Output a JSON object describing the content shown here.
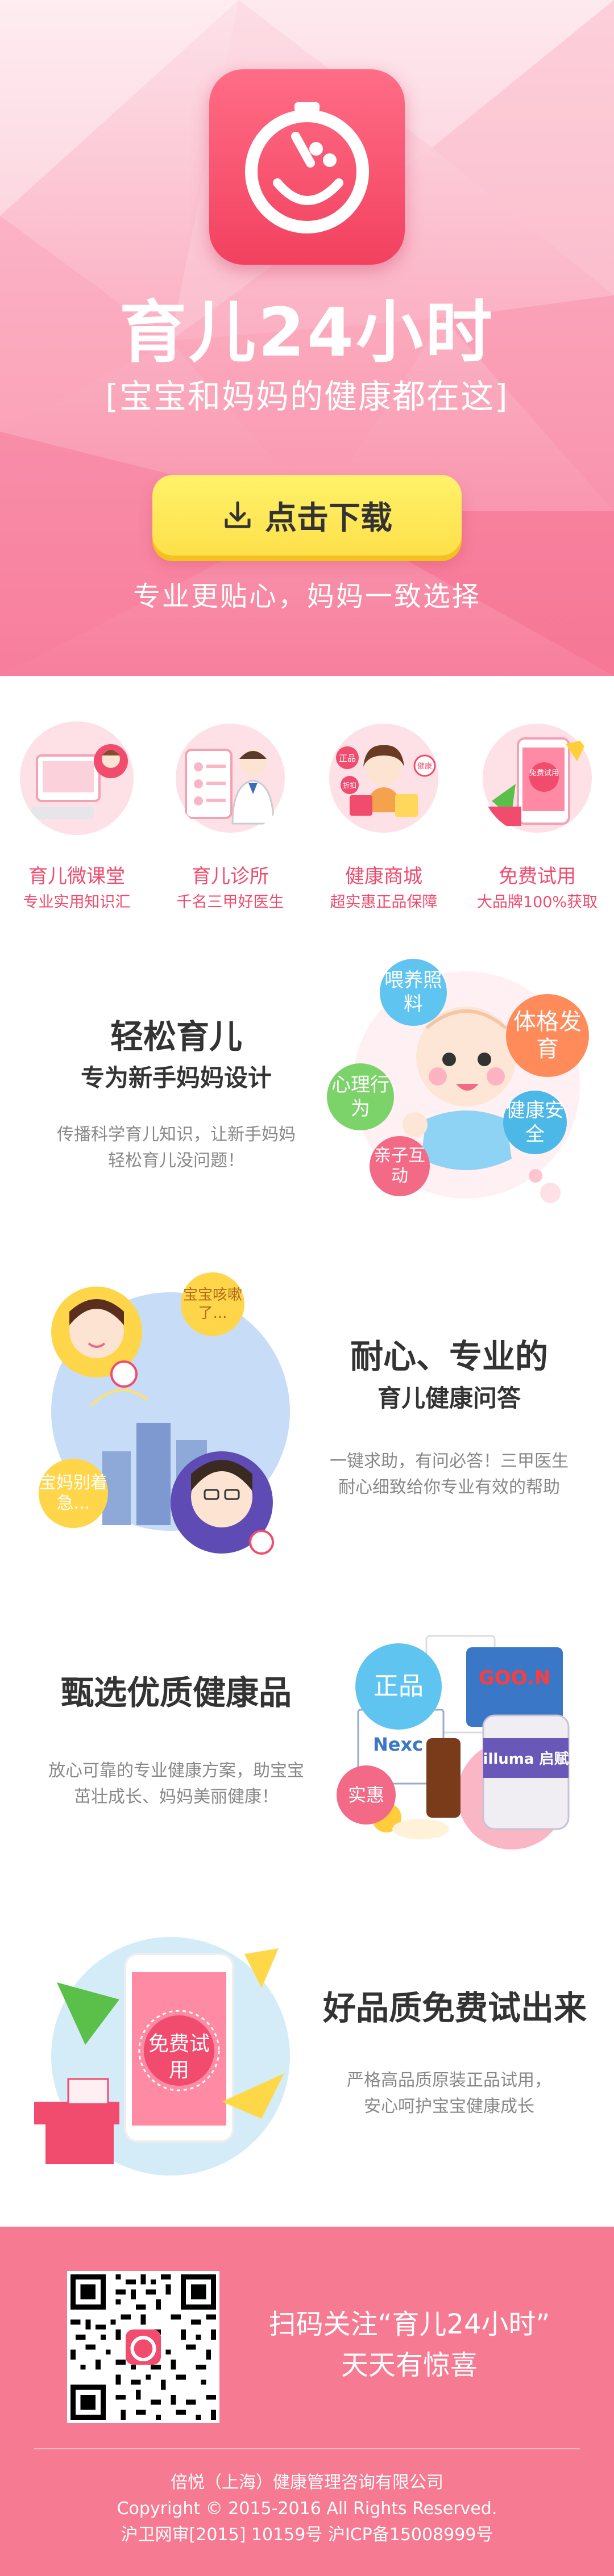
{
  "hero": {
    "title": "育儿24小时",
    "subtitle": "[宝宝和妈妈的健康都在这]",
    "download_label": "点击下载",
    "slogan": "专业更贴心，妈妈一致选择",
    "download_icon": "download-icon",
    "app_icon": "clock-smile-icon"
  },
  "features": [
    {
      "title": "育儿微课堂",
      "desc": "专业实用知识汇",
      "icon": "classroom-icon"
    },
    {
      "title": "育儿诊所",
      "desc": "千名三甲好医生",
      "icon": "doctor-icon"
    },
    {
      "title": "健康商城",
      "desc": "超实惠正品保障",
      "icon": "shopping-icon",
      "tags": [
        "正品",
        "健康",
        "折扣"
      ]
    },
    {
      "title": "免费试用",
      "desc": "大品牌100%获取",
      "icon": "free-trial-icon",
      "tag": "免费试用"
    }
  ],
  "section1": {
    "title": "轻松育儿",
    "subtitle": "专为新手妈妈设计",
    "desc_line1": "传播科学育儿知识，让新手妈妈",
    "desc_line2": "轻松育儿没问题！",
    "bubbles": [
      "喂养照料",
      "体格发育",
      "心理行为",
      "健康安全",
      "亲子互动"
    ]
  },
  "section2": {
    "title": "耐心、专业的",
    "subtitle": "育儿健康问答",
    "desc_line1": "一键求助，有问必答！三甲医生",
    "desc_line2": "耐心细致给你专业有效的帮助",
    "bubble_top": "宝宝咳嗽了...",
    "bubble_bottom": "宝妈别着急..."
  },
  "section3": {
    "title": "甄选优质健康品",
    "desc_line1": "放心可靠的专业健康方案，助宝宝",
    "desc_line2": "茁壮成长、妈妈美丽健康！",
    "badge_genuine": "正品",
    "badge_value": "实惠",
    "product_labels": [
      "GOO.N",
      "illuma 启赋",
      "Nexc"
    ]
  },
  "section4": {
    "title": "好品质免费试出来",
    "desc_line1": "严格高品质原装正品试用，",
    "desc_line2": "安心呵护宝宝健康成长",
    "phone_tag": "免费试用"
  },
  "footer": {
    "scan_line1": "扫码关注“育儿24小时”",
    "scan_line2": "天天有惊喜",
    "company": "倍悦（上海）健康管理咨询有限公司",
    "copyright": "Copyright © 2015-2016   All Rights Reserved.",
    "license": "沪卫网审[2015] 10159号   沪ICP备15008999号"
  },
  "colors": {
    "brand_pink": "#f14b6e",
    "footer_pink": "#f77a93",
    "button_yellow": "#fde04a"
  }
}
